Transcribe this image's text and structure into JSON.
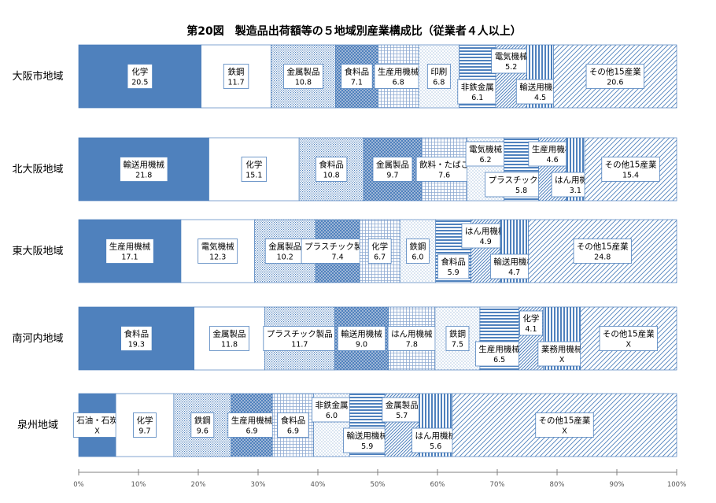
{
  "chart_data": {
    "type": "bar",
    "stacked": true,
    "horizontal": true,
    "percent_scale": true,
    "title": "第20図　製造品出荷額等の５地域別産業構成比（従業者４人以上）",
    "x_ticks": [
      "0%",
      "10%",
      "20%",
      "30%",
      "40%",
      "50%",
      "60%",
      "70%",
      "80%",
      "90%",
      "100%"
    ],
    "xlim": [
      0,
      100
    ],
    "regions": [
      {
        "name": "大阪市地域",
        "segments": [
          {
            "label": "化学",
            "value": 20.5,
            "text": "20.5",
            "pattern": "solid",
            "pos": "in"
          },
          {
            "label": "鉄鋼",
            "value": 11.7,
            "text": "11.7",
            "pattern": "white",
            "pos": "in"
          },
          {
            "label": "金属製品",
            "value": 10.8,
            "text": "10.8",
            "pattern": "finegrid",
            "pos": "in"
          },
          {
            "label": "食料品",
            "value": 7.1,
            "text": "7.1",
            "pattern": "checker",
            "pos": "in"
          },
          {
            "label": "生産用機械",
            "value": 6.8,
            "text": "6.8",
            "pattern": "lightgrid",
            "pos": "in"
          },
          {
            "label": "印刷",
            "value": 6.8,
            "text": "6.8",
            "pattern": "dots",
            "pos": "in"
          },
          {
            "label": "非鉄金属",
            "value": 6.1,
            "text": "6.1",
            "pattern": "hlines",
            "pos": "low"
          },
          {
            "label": "電気機械",
            "value": 5.2,
            "text": "5.2",
            "pattern": "diagfine",
            "pos": "high"
          },
          {
            "label": "輸送用機械",
            "value": 4.5,
            "text": "4.5",
            "pattern": "vlines",
            "pos": "low"
          },
          {
            "label": "その他15産業",
            "value": 20.6,
            "text": "20.6",
            "pattern": "diag",
            "pos": "in"
          }
        ]
      },
      {
        "name": "北大阪地域",
        "segments": [
          {
            "label": "輸送用機械",
            "value": 21.8,
            "text": "21.8",
            "pattern": "solid",
            "pos": "in"
          },
          {
            "label": "化学",
            "value": 15.1,
            "text": "15.1",
            "pattern": "white",
            "pos": "in"
          },
          {
            "label": "食料品",
            "value": 10.8,
            "text": "10.8",
            "pattern": "finegrid",
            "pos": "in"
          },
          {
            "label": "金属製品",
            "value": 9.7,
            "text": "9.7",
            "pattern": "checker",
            "pos": "in"
          },
          {
            "label": "飲料・たばこ",
            "value": 7.6,
            "text": "7.6",
            "pattern": "lightgrid",
            "pos": "in"
          },
          {
            "label": "電気機械",
            "value": 6.2,
            "text": "6.2",
            "pattern": "dots",
            "pos": "high"
          },
          {
            "label": "プラスチック製品",
            "value": 5.8,
            "text": "5.8",
            "pattern": "hlines",
            "pos": "low"
          },
          {
            "label": "生産用機械",
            "value": 4.6,
            "text": "4.6",
            "pattern": "diagfine",
            "pos": "high"
          },
          {
            "label": "はん用機械",
            "value": 3.1,
            "text": "3.1",
            "pattern": "vlines",
            "pos": "low"
          },
          {
            "label": "その他15産業",
            "value": 15.4,
            "text": "15.4",
            "pattern": "diag",
            "pos": "in"
          }
        ]
      },
      {
        "name": "東大阪地域",
        "segments": [
          {
            "label": "生産用機械",
            "value": 17.1,
            "text": "17.1",
            "pattern": "solid",
            "pos": "in"
          },
          {
            "label": "電気機械",
            "value": 12.3,
            "text": "12.3",
            "pattern": "white",
            "pos": "in"
          },
          {
            "label": "金属製品",
            "value": 10.2,
            "text": "10.2",
            "pattern": "finegrid",
            "pos": "in"
          },
          {
            "label": "プラスチック製品",
            "value": 7.4,
            "text": "7.4",
            "pattern": "checker",
            "pos": "in"
          },
          {
            "label": "化学",
            "value": 6.7,
            "text": "6.7",
            "pattern": "lightgrid",
            "pos": "in"
          },
          {
            "label": "鉄鋼",
            "value": 6.0,
            "text": "6.0",
            "pattern": "dots",
            "pos": "in"
          },
          {
            "label": "食料品",
            "value": 5.9,
            "text": "5.9",
            "pattern": "hlines",
            "pos": "low"
          },
          {
            "label": "はん用機械",
            "value": 4.9,
            "text": "4.9",
            "pattern": "diagfine",
            "pos": "high"
          },
          {
            "label": "輸送用機械",
            "value": 4.7,
            "text": "4.7",
            "pattern": "vlines",
            "pos": "low"
          },
          {
            "label": "その他15産業",
            "value": 24.8,
            "text": "24.8",
            "pattern": "diag",
            "pos": "in"
          }
        ]
      },
      {
        "name": "南河内地域",
        "segments": [
          {
            "label": "食料品",
            "value": 19.3,
            "text": "19.3",
            "pattern": "solid",
            "pos": "in"
          },
          {
            "label": "金属製品",
            "value": 11.8,
            "text": "11.8",
            "pattern": "white",
            "pos": "in"
          },
          {
            "label": "プラスチック製品",
            "value": 11.7,
            "text": "11.7",
            "pattern": "finegrid",
            "pos": "in"
          },
          {
            "label": "輸送用機械",
            "value": 9.0,
            "text": "9.0",
            "pattern": "checker",
            "pos": "in"
          },
          {
            "label": "はん用機械",
            "value": 7.8,
            "text": "7.8",
            "pattern": "lightgrid",
            "pos": "in"
          },
          {
            "label": "鉄鋼",
            "value": 7.5,
            "text": "7.5",
            "pattern": "dots",
            "pos": "in"
          },
          {
            "label": "生産用機械",
            "value": 6.5,
            "text": "6.5",
            "pattern": "hlines",
            "pos": "low"
          },
          {
            "label": "化学",
            "value": 4.1,
            "text": "4.1",
            "pattern": "diagfine",
            "pos": "high"
          },
          {
            "label": "業務用機械",
            "value": null,
            "text": "X",
            "pattern": "vlines",
            "pos": "low"
          },
          {
            "label": "その他15産業",
            "value": null,
            "text": "X",
            "pattern": "diag",
            "pos": "in"
          }
        ]
      },
      {
        "name": "泉州地域",
        "segments": [
          {
            "label": "石油・石炭",
            "value": null,
            "text": "X",
            "pattern": "solid",
            "pos": "in"
          },
          {
            "label": "化学",
            "value": 9.7,
            "text": "9.7",
            "pattern": "white",
            "pos": "in"
          },
          {
            "label": "鉄鋼",
            "value": 9.6,
            "text": "9.6",
            "pattern": "finegrid",
            "pos": "in"
          },
          {
            "label": "生産用機械",
            "value": 6.9,
            "text": "6.9",
            "pattern": "checker",
            "pos": "in"
          },
          {
            "label": "食料品",
            "value": 6.9,
            "text": "6.9",
            "pattern": "lightgrid",
            "pos": "in"
          },
          {
            "label": "非鉄金属",
            "value": 6.0,
            "text": "6.0",
            "pattern": "dots",
            "pos": "high"
          },
          {
            "label": "輸送用機械",
            "value": 5.9,
            "text": "5.9",
            "pattern": "hlines",
            "pos": "low"
          },
          {
            "label": "金属製品",
            "value": 5.7,
            "text": "5.7",
            "pattern": "diagfine",
            "pos": "high"
          },
          {
            "label": "はん用機械",
            "value": 5.6,
            "text": "5.6",
            "pattern": "vlines",
            "pos": "low"
          },
          {
            "label": "その他15産業",
            "value": null,
            "text": "X",
            "pattern": "diag",
            "pos": "in"
          }
        ]
      }
    ]
  },
  "colors": {
    "primary": "#4f81bd",
    "outline": "#4f81bd",
    "axis": "#808080",
    "text": "#000000"
  }
}
